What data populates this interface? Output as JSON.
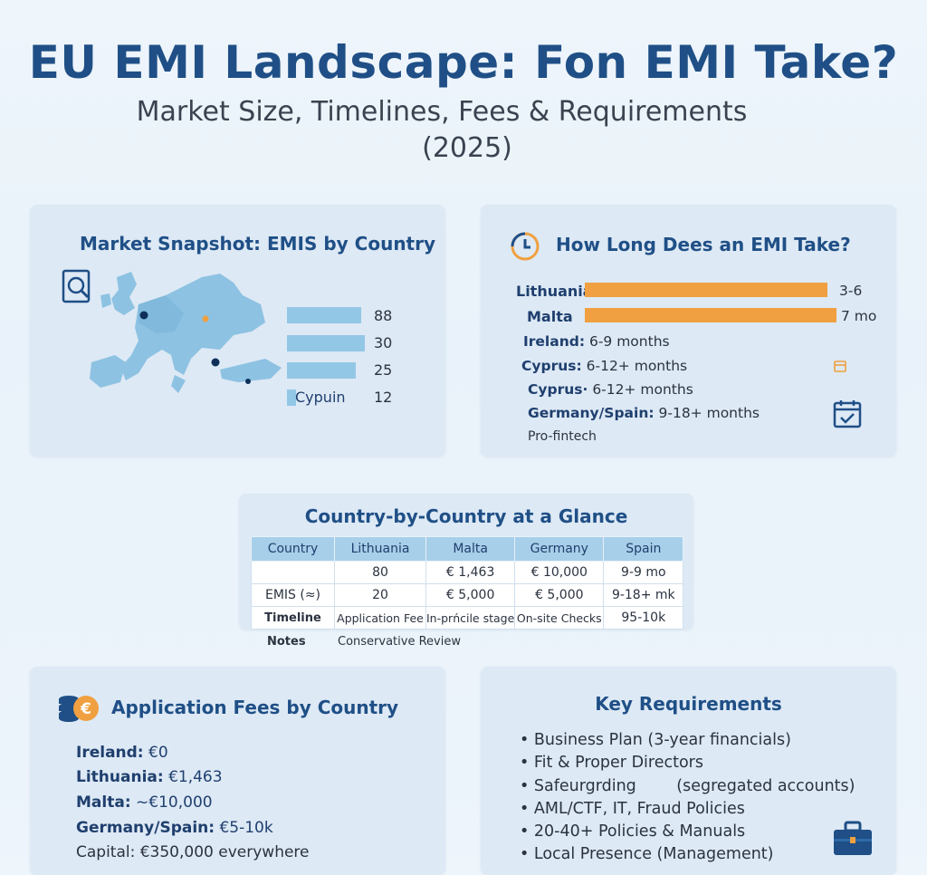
{
  "header": {
    "title": "EU EMI Landscape: Fon EMI Take?",
    "subtitle_line1": "Market Size, Timelines, Fees & Requirements",
    "subtitle_line2": "(2025)"
  },
  "market": {
    "title": "Market Snapshot: EMIS by Country",
    "bars": [
      {
        "value": 88,
        "label": ""
      },
      {
        "value": 30,
        "label": ""
      },
      {
        "value": 25,
        "label": ""
      },
      {
        "value": 12,
        "label": "Cypuin"
      }
    ],
    "icon": "magnifier-document-icon"
  },
  "timeline": {
    "title": "How Long Dees an EMI Take?",
    "bars": [
      {
        "label": "Lithuania",
        "value_text": "3-6"
      },
      {
        "label": "Malta",
        "value_text": "7 mo"
      }
    ],
    "items": [
      {
        "country": "Ireland:",
        "text": "6-9 months"
      },
      {
        "country": "Cyprus:",
        "text": "6-12+ months"
      },
      {
        "country": "Cyprus·",
        "text": "6-12+ months"
      },
      {
        "country": "Germany/Spain:",
        "text": "9-18+ months"
      }
    ],
    "footnote": "Pro-fintech",
    "colors": {
      "bar": "#f0a040",
      "accent": "#1f4f86"
    }
  },
  "table": {
    "title": "Country-by-Country at a Glance",
    "headers": [
      "Country",
      "Lithuania",
      "Malta",
      "Germany",
      "Spain"
    ],
    "rows": [
      [
        "",
        "80",
        "€ 1,463",
        "€ 10,000",
        "9-9 mo"
      ],
      [
        "EMIS (≈)",
        "20",
        "€ 5,000",
        "€  5,000",
        "9-18+ mk"
      ],
      [
        "Timeline",
        "Application Fee",
        "In-prńcile stage",
        "On-site Checks",
        "95-10k"
      ]
    ],
    "notes_label": "Notes",
    "notes_text": "Conservative Review"
  },
  "fees": {
    "title": "Application Fees by Country",
    "items": [
      {
        "country": "Ireland:",
        "value": "€0"
      },
      {
        "country": "Lithuania:",
        "value": "€1,463"
      },
      {
        "country": "Malta:",
        "value": "~€10,000"
      },
      {
        "country": "Germany/Spain:",
        "value": "€5-10k"
      }
    ],
    "capital": "Capital: €350,000 everywhere"
  },
  "requirements": {
    "title": "Key Requirements",
    "items": [
      "• Business Plan (3-year financials)",
      "• Fit & Proper Directors",
      "• Safeurgrding        (segregated accounts)",
      "• AML/CTF, IT, Fraud Policies",
      "• 20-40+ Policies & Manuals",
      "• Local Presence (Management)"
    ]
  }
}
